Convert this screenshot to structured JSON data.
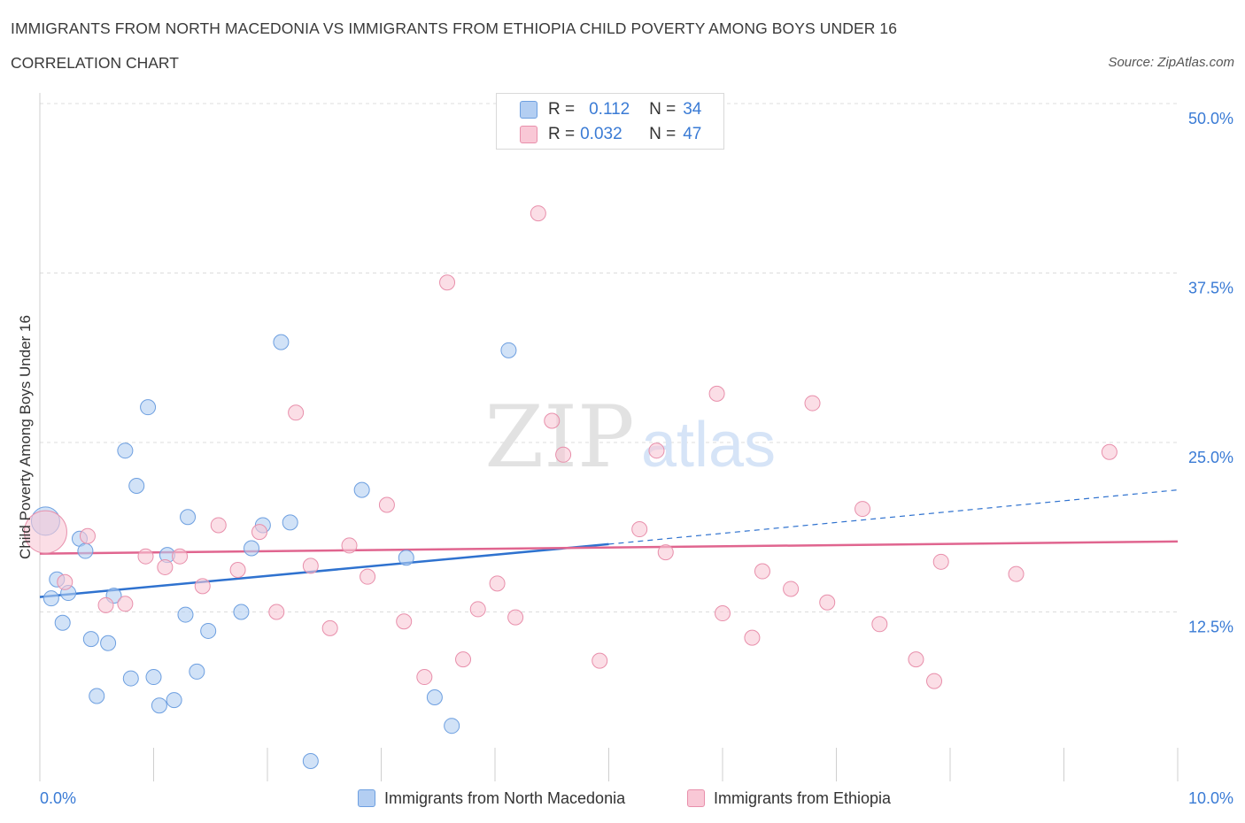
{
  "title": "IMMIGRANTS FROM NORTH MACEDONIA VS IMMIGRANTS FROM ETHIOPIA CHILD POVERTY AMONG BOYS UNDER 16",
  "subtitle": "CORRELATION CHART",
  "source": "Source: ZipAtlas.com",
  "watermark": {
    "zip": "ZIP",
    "atlas": "atlas"
  },
  "legend": {
    "r_label": "R =",
    "n_label": "N =",
    "series": [
      {
        "r": "0.112",
        "n": "34"
      },
      {
        "r": "0.032",
        "n": "47"
      }
    ]
  },
  "colors": {
    "blue_fill": "#b3cef2",
    "blue_stroke": "#6d9fe0",
    "blue_line": "#2f72cf",
    "pink_fill": "#f9c8d6",
    "pink_stroke": "#e88fab",
    "pink_line": "#e0658f",
    "axis_text": "#3a7bd5",
    "grid": "#dcdcdc"
  },
  "chart_data": {
    "type": "scatter",
    "title": "IMMIGRANTS FROM NORTH MACEDONIA VS IMMIGRANTS FROM ETHIOPIA CHILD POVERTY AMONG BOYS UNDER 16",
    "xlabel": "",
    "ylabel": "Child Poverty Among Boys Under 16",
    "xlim": [
      0,
      10
    ],
    "ylim": [
      0,
      50
    ],
    "x_tick_labels": [
      "0.0%",
      "10.0%"
    ],
    "y_tick_labels": [
      "12.5%",
      "25.0%",
      "37.5%",
      "50.0%"
    ],
    "y_ticks": [
      12.5,
      25.0,
      37.5,
      50.0
    ],
    "grid": "horizontal dashed",
    "series": [
      {
        "name": "Immigrants from North Macedonia",
        "color": "blue",
        "trend": {
          "x": [
            0.0,
            5.0
          ],
          "y": [
            13.6,
            17.5
          ],
          "dashed_extension_to": [
            10.0,
            21.5
          ]
        },
        "points": [
          [
            0.05,
            19.2,
            "big"
          ],
          [
            0.1,
            13.5
          ],
          [
            0.15,
            14.9
          ],
          [
            0.2,
            11.7
          ],
          [
            0.25,
            13.9
          ],
          [
            0.35,
            17.9
          ],
          [
            0.4,
            17.0
          ],
          [
            0.45,
            10.5
          ],
          [
            0.5,
            6.3
          ],
          [
            0.6,
            10.2
          ],
          [
            0.65,
            13.7
          ],
          [
            0.75,
            24.4
          ],
          [
            0.8,
            7.6
          ],
          [
            0.85,
            21.8
          ],
          [
            0.95,
            27.6
          ],
          [
            1.0,
            7.7
          ],
          [
            1.05,
            5.6
          ],
          [
            1.12,
            16.7
          ],
          [
            1.18,
            6.0
          ],
          [
            1.28,
            12.3
          ],
          [
            1.3,
            19.5
          ],
          [
            1.38,
            8.1
          ],
          [
            1.48,
            11.1
          ],
          [
            1.77,
            12.5
          ],
          [
            1.86,
            17.2
          ],
          [
            1.96,
            18.9
          ],
          [
            2.12,
            32.4
          ],
          [
            2.2,
            19.1
          ],
          [
            2.38,
            1.5
          ],
          [
            2.83,
            21.5
          ],
          [
            3.22,
            16.5
          ],
          [
            3.47,
            6.2
          ],
          [
            3.62,
            4.1
          ],
          [
            4.12,
            31.8
          ]
        ]
      },
      {
        "name": "Immigrants from Ethiopia",
        "color": "pink",
        "trend": {
          "x": [
            0.0,
            10.0
          ],
          "y": [
            16.8,
            17.7
          ]
        },
        "points": [
          [
            0.05,
            18.4,
            "big"
          ],
          [
            0.22,
            14.7
          ],
          [
            0.42,
            18.1
          ],
          [
            0.58,
            13.0
          ],
          [
            0.75,
            13.1
          ],
          [
            0.93,
            16.6
          ],
          [
            1.1,
            15.8
          ],
          [
            1.23,
            16.6
          ],
          [
            1.43,
            14.4
          ],
          [
            1.57,
            18.9
          ],
          [
            1.74,
            15.6
          ],
          [
            1.93,
            18.4
          ],
          [
            2.08,
            12.5
          ],
          [
            2.25,
            27.2
          ],
          [
            2.38,
            15.9
          ],
          [
            2.55,
            11.3
          ],
          [
            2.72,
            17.4
          ],
          [
            2.88,
            15.1
          ],
          [
            3.05,
            20.4
          ],
          [
            3.2,
            11.8
          ],
          [
            3.38,
            7.7
          ],
          [
            3.58,
            36.8
          ],
          [
            3.72,
            9.0
          ],
          [
            3.85,
            12.7
          ],
          [
            4.02,
            14.6
          ],
          [
            4.18,
            12.1
          ],
          [
            4.38,
            41.9
          ],
          [
            4.5,
            26.6
          ],
          [
            4.6,
            24.1
          ],
          [
            4.92,
            8.9
          ],
          [
            5.27,
            18.6
          ],
          [
            5.42,
            24.4
          ],
          [
            5.5,
            16.9
          ],
          [
            5.95,
            28.6
          ],
          [
            6.0,
            12.4
          ],
          [
            6.26,
            10.6
          ],
          [
            6.35,
            15.5
          ],
          [
            6.6,
            14.2
          ],
          [
            6.79,
            27.9
          ],
          [
            6.92,
            13.2
          ],
          [
            7.23,
            20.1
          ],
          [
            7.38,
            11.6
          ],
          [
            7.7,
            9.0
          ],
          [
            7.86,
            7.4
          ],
          [
            7.92,
            16.2
          ],
          [
            8.58,
            15.3
          ],
          [
            9.4,
            24.3
          ]
        ]
      }
    ]
  },
  "bottom_legend": [
    {
      "label": "Immigrants from North Macedonia"
    },
    {
      "label": "Immigrants from Ethiopia"
    }
  ]
}
